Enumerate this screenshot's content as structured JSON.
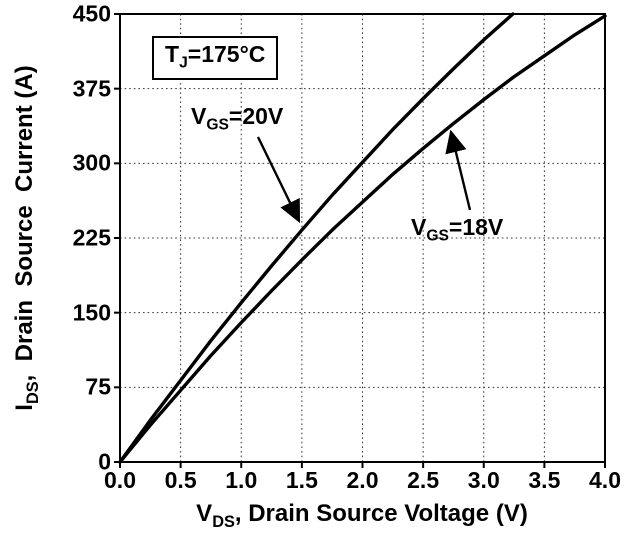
{
  "figure": {
    "bg_color": "#ffffff",
    "line_color": "#000000",
    "grid_color": "#333333"
  },
  "labels": {
    "y_axis": {
      "pre": "I",
      "sub": "DS",
      "post": ",  Drain  Source  Current (A)"
    },
    "x_axis": {
      "pre": "V",
      "sub": "DS",
      "post": ", Drain Source Voltage (V)"
    },
    "tj_annotation": {
      "pre": "T",
      "sub": "J",
      "post": "=175°C"
    },
    "vgs20": {
      "pre": "V",
      "sub": "GS",
      "post": "=20V"
    },
    "vgs18": {
      "pre": "V",
      "sub": "GS",
      "post": "=18V"
    }
  },
  "chart_data": {
    "type": "line",
    "title": "",
    "xlabel": "VDS, Drain Source Voltage (V)",
    "ylabel": "IDS, Drain Source Current (A)",
    "xlim": [
      0,
      4
    ],
    "ylim": [
      0,
      450
    ],
    "grid": "dotted",
    "legend_position": "none",
    "annotation": "TJ=175°C",
    "x_ticks": [
      {
        "v": 0,
        "label": "0.0"
      },
      {
        "v": 0.5,
        "label": "0.5"
      },
      {
        "v": 1,
        "label": "1.0"
      },
      {
        "v": 1.5,
        "label": "1.5"
      },
      {
        "v": 2,
        "label": "2.0"
      },
      {
        "v": 2.5,
        "label": "2.5"
      },
      {
        "v": 3,
        "label": "3.0"
      },
      {
        "v": 3.5,
        "label": "3.5"
      },
      {
        "v": 4,
        "label": "4.0"
      }
    ],
    "y_ticks": [
      {
        "v": 0,
        "label": "0"
      },
      {
        "v": 75,
        "label": "75"
      },
      {
        "v": 150,
        "label": "150"
      },
      {
        "v": 225,
        "label": "225"
      },
      {
        "v": 300,
        "label": "300"
      },
      {
        "v": 375,
        "label": "375"
      },
      {
        "v": 450,
        "label": "450"
      }
    ],
    "series": [
      {
        "name": "VGS=20V",
        "x": [
          0,
          0.25,
          0.5,
          0.75,
          1.0,
          1.25,
          1.5,
          1.75,
          2.0,
          2.25,
          2.5,
          2.75,
          3.0,
          3.24
        ],
        "y": [
          0,
          42,
          82,
          122,
          160,
          197,
          233,
          268,
          301,
          334,
          365,
          395,
          424,
          450
        ]
      },
      {
        "name": "VGS=18V",
        "x": [
          0,
          0.25,
          0.5,
          0.75,
          1.0,
          1.25,
          1.5,
          1.75,
          2.0,
          2.25,
          2.5,
          2.75,
          3.0,
          3.25,
          3.5,
          3.75,
          4.0
        ],
        "y": [
          0,
          37,
          72,
          107,
          140,
          172,
          203,
          233,
          261,
          289,
          315,
          340,
          364,
          387,
          408,
          429,
          448
        ]
      }
    ]
  }
}
